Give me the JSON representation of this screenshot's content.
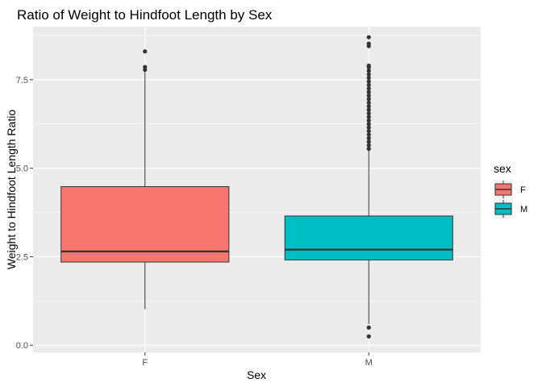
{
  "chart_data": {
    "type": "boxplot",
    "title": "Ratio of Weight to Hindfoot Length by Sex",
    "xlabel": "Sex",
    "ylabel": "Weight to Hindfoot Length Ratio",
    "categories": [
      "F",
      "M"
    ],
    "ylim": [
      -0.2,
      9.0
    ],
    "yticks": [
      0.0,
      2.5,
      5.0,
      7.5
    ],
    "ytick_labels": [
      "0.0",
      "2.5",
      "5.0",
      "7.5"
    ],
    "grid": true,
    "legend": {
      "title": "sex",
      "placement": "right",
      "entries": [
        {
          "label": "F",
          "color": "#F8766D"
        },
        {
          "label": "M",
          "color": "#00BFC4"
        }
      ]
    },
    "boxes": [
      {
        "category": "F",
        "color": "#F8766D",
        "whisker_low": 1.02,
        "q1": 2.35,
        "median": 2.65,
        "q3": 4.48,
        "whisker_high": 7.72,
        "outliers": [
          7.78,
          7.86,
          8.3
        ]
      },
      {
        "category": "M",
        "color": "#00BFC4",
        "whisker_low": 0.6,
        "q1": 2.41,
        "median": 2.7,
        "q3": 3.65,
        "whisker_high": 5.5,
        "outliers": [
          0.25,
          0.5,
          5.55,
          5.65,
          5.75,
          5.85,
          5.95,
          6.05,
          6.15,
          6.25,
          6.35,
          6.45,
          6.55,
          6.65,
          6.75,
          6.85,
          6.95,
          7.05,
          7.15,
          7.25,
          7.35,
          7.45,
          7.55,
          7.65,
          7.75,
          7.85,
          7.9,
          8.45,
          8.52,
          8.7
        ]
      }
    ]
  }
}
